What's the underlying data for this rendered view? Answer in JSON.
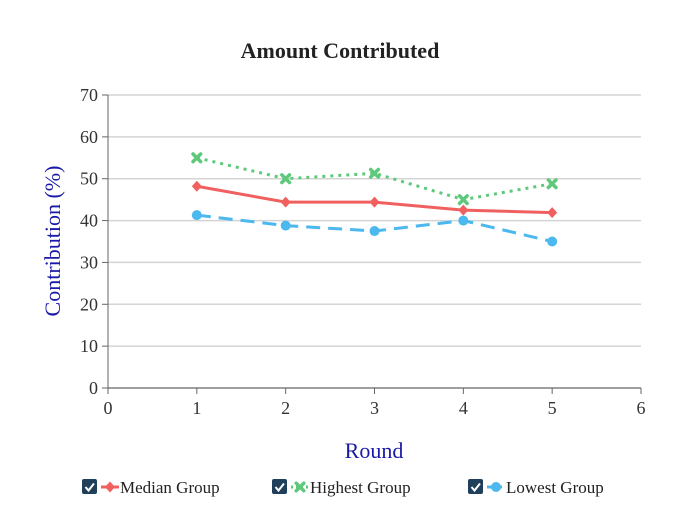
{
  "chart_data": {
    "type": "line",
    "title": "Amount Contributed",
    "xlabel": "Round",
    "ylabel": "Contribution (%)",
    "xlim": [
      0,
      6
    ],
    "ylim": [
      0,
      70
    ],
    "x_ticks": [
      0,
      1,
      2,
      3,
      4,
      5,
      6
    ],
    "y_ticks": [
      0,
      10,
      20,
      30,
      40,
      50,
      60,
      70
    ],
    "grid": "horizontal",
    "legend_position": "bottom",
    "series": [
      {
        "name": "Median Group",
        "color": "#f0605f",
        "line_style": "solid",
        "marker": "diamond-icon",
        "x": [
          1,
          2,
          3,
          4,
          5
        ],
        "values": [
          48.2,
          44.4,
          44.4,
          42.5,
          41.9
        ]
      },
      {
        "name": "Highest Group",
        "color": "#5ec97a",
        "line_style": "dotted",
        "marker": "cross-icon",
        "x": [
          1,
          2,
          3,
          4,
          5
        ],
        "values": [
          55.0,
          50.0,
          51.3,
          45.0,
          48.8
        ]
      },
      {
        "name": "Lowest Group",
        "color": "#4bb8ee",
        "line_style": "dashed",
        "marker": "circle-icon",
        "x": [
          1,
          2,
          3,
          4,
          5
        ],
        "values": [
          41.3,
          38.8,
          37.5,
          40.0,
          35.0
        ]
      }
    ]
  },
  "legend": {
    "checkbox_color": "#1f3f5a",
    "checked": [
      true,
      true,
      true
    ]
  }
}
